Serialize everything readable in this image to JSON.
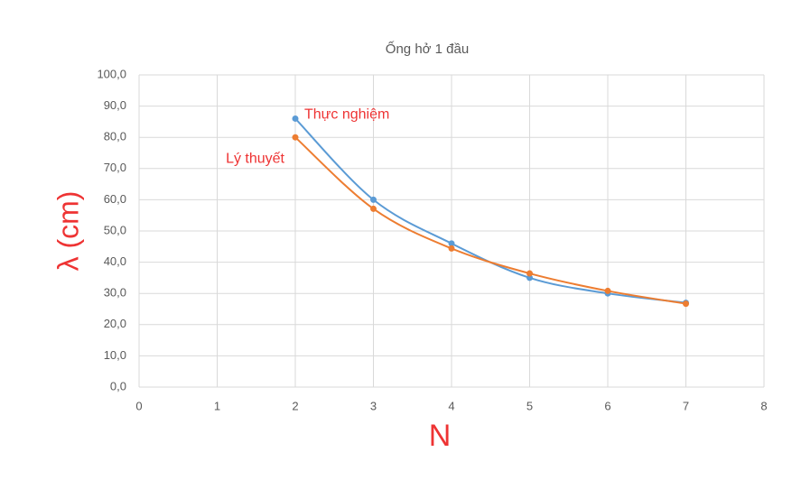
{
  "chart_data": {
    "type": "line",
    "title": "Ống hở 1 đầu",
    "x_label": "N",
    "y_label": "λ (cm)",
    "x": [
      2,
      3,
      4,
      5,
      6,
      7
    ],
    "series": [
      {
        "name": "Thực nghiệm",
        "color": "#5b9bd5",
        "values": [
          86,
          60,
          46,
          35,
          30,
          27
        ]
      },
      {
        "name": "Lý thuyết",
        "color": "#ed7d31",
        "values": [
          80,
          57.1,
          44.4,
          36.4,
          30.8,
          26.7
        ]
      }
    ],
    "xlim": [
      0,
      8
    ],
    "xticks": [
      0,
      1,
      2,
      3,
      4,
      5,
      6,
      7,
      8
    ],
    "ylim": [
      0,
      100
    ],
    "yticks": [
      {
        "value": 0,
        "label": "0,0"
      },
      {
        "value": 10,
        "label": "10,0"
      },
      {
        "value": 20,
        "label": "20,0"
      },
      {
        "value": 30,
        "label": "30,0"
      },
      {
        "value": 40,
        "label": "40,0"
      },
      {
        "value": 50,
        "label": "50,0"
      },
      {
        "value": 60,
        "label": "60,0"
      },
      {
        "value": 70,
        "label": "70,0"
      },
      {
        "value": 80,
        "label": "80,0"
      },
      {
        "value": 90,
        "label": "90,0"
      },
      {
        "value": 100,
        "label": "100,0"
      }
    ],
    "grid": true,
    "smooth": true
  }
}
